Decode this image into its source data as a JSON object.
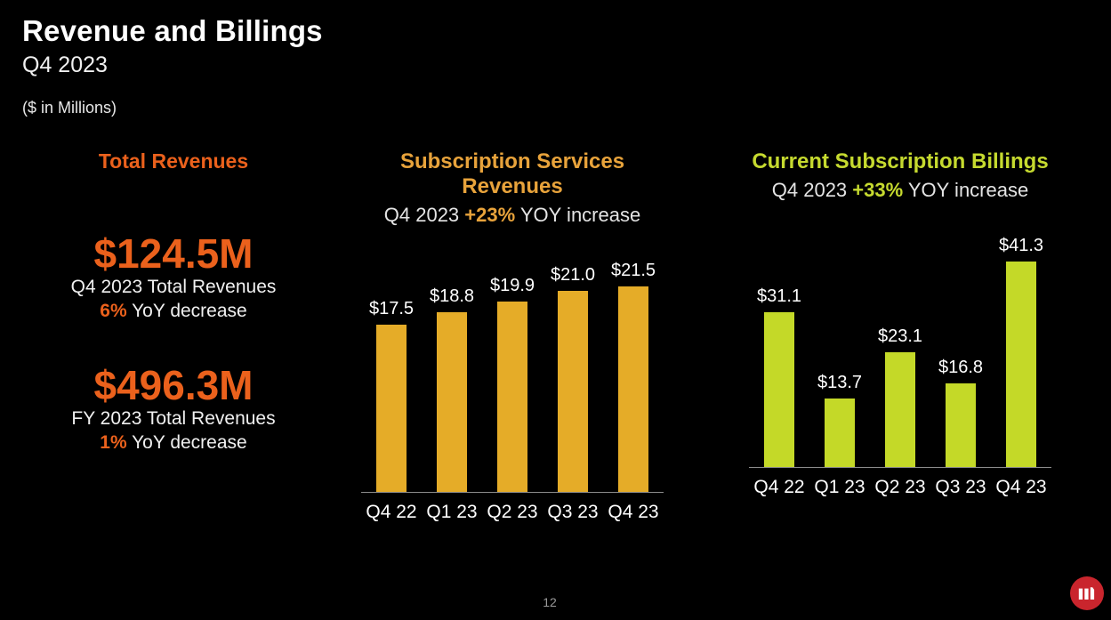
{
  "header": {
    "title": "Revenue and Billings",
    "subtitle": "Q4 2023",
    "units_note": "($ in Millions)"
  },
  "colors": {
    "background": "#000000",
    "orange": "#EB611C",
    "gold": "#E8A33B",
    "gold_bar": "#E5AC28",
    "green": "#C6DA2F",
    "green_bar": "#C4D928",
    "axis_line": "#8C8C8C",
    "page_number_grey": "#9A9A9A",
    "logo_red": "#C9252D",
    "logo_icon": "mimecast-m-icon"
  },
  "stats": {
    "heading": "Total Revenues",
    "blocks": [
      {
        "value": "$124.5M",
        "caption": "Q4 2023 Total Revenues",
        "pct": "6%",
        "pct_suffix": " YoY decrease"
      },
      {
        "value": "$496.3M",
        "caption": "FY 2023 Total Revenues",
        "pct": "1%",
        "pct_suffix": " YoY decrease"
      }
    ]
  },
  "chart_data": [
    {
      "type": "bar",
      "title": "Subscription Services Revenues",
      "subtitle_prefix": "Q4 2023 ",
      "subtitle_highlight": "+23%",
      "subtitle_suffix": " YOY increase",
      "categories": [
        "Q4 22",
        "Q1 23",
        "Q2 23",
        "Q3 23",
        "Q4 23"
      ],
      "values": [
        17.5,
        18.8,
        19.9,
        21.0,
        21.5
      ],
      "labels": [
        "$17.5",
        "$18.8",
        "$19.9",
        "$21.0",
        "$21.5"
      ],
      "ylim": [
        0,
        21.5
      ],
      "grid": false,
      "legend": "none",
      "bar_color": "#E5AC28",
      "accent": "#E8A33B"
    },
    {
      "type": "bar",
      "title": "Current Subscription Billings",
      "subtitle_prefix": "Q4 2023 ",
      "subtitle_highlight": "+33%",
      "subtitle_suffix": " YOY increase",
      "categories": [
        "Q4 22",
        "Q1 23",
        "Q2 23",
        "Q3 23",
        "Q4 23"
      ],
      "values": [
        31.1,
        13.7,
        23.1,
        16.8,
        41.3
      ],
      "labels": [
        "$31.1",
        "$13.7",
        "$23.1",
        "$16.8",
        "$41.3"
      ],
      "ylim": [
        0,
        41.3
      ],
      "grid": false,
      "legend": "none",
      "bar_color": "#C4D928",
      "accent": "#C6DA2F"
    }
  ],
  "footer": {
    "page_number": "12"
  }
}
